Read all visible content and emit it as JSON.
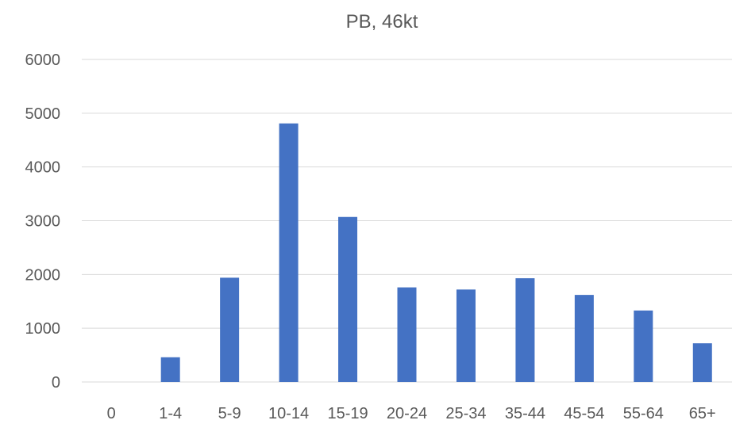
{
  "chart_data": {
    "type": "bar",
    "title": "PB, 46kt",
    "xlabel": "",
    "ylabel": "",
    "categories": [
      "0",
      "1-4",
      "5-9",
      "10-14",
      "15-19",
      "20-24",
      "25-34",
      "35-44",
      "45-54",
      "55-64",
      "65+"
    ],
    "series": [
      {
        "values": [
          0,
          460,
          1940,
          4810,
          3070,
          1760,
          1720,
          1930,
          1620,
          1330,
          720
        ]
      }
    ],
    "ylim": [
      0,
      6000
    ],
    "yticks": [
      "0",
      "1000",
      "2000",
      "3000",
      "4000",
      "5000",
      "6000"
    ],
    "grid": true,
    "legend": "none",
    "colors": {
      "bar": "#4472c4",
      "grid": "#d9d9d9",
      "text": "#595959"
    }
  }
}
